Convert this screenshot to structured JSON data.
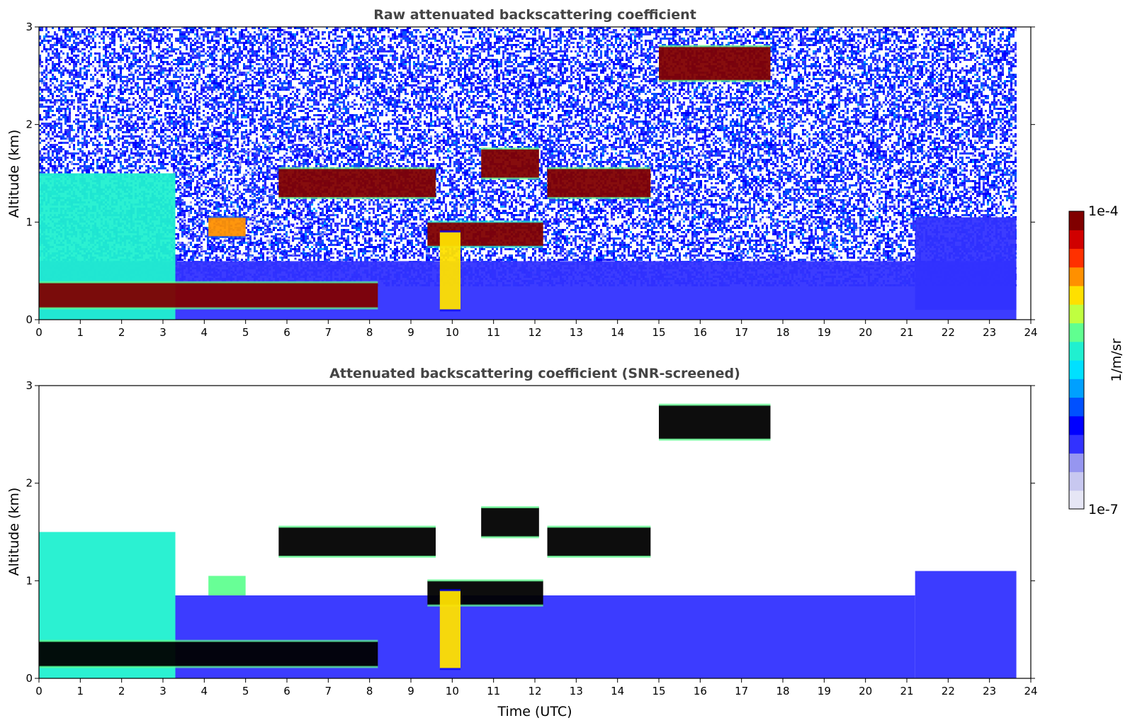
{
  "chart_data": [
    {
      "type": "heatmap",
      "title": "Raw attenuated backscattering coefficient",
      "xlabel": "",
      "ylabel": "Altitude (km)",
      "xlim": [
        0,
        24
      ],
      "ylim": [
        0,
        3
      ],
      "x_ticks": [
        0,
        1,
        2,
        3,
        4,
        5,
        6,
        7,
        8,
        9,
        10,
        11,
        12,
        13,
        14,
        15,
        16,
        17,
        18,
        19,
        20,
        21,
        22,
        23,
        24
      ],
      "y_ticks": [
        0,
        1,
        2,
        3
      ],
      "features": [
        {
          "kind": "noise",
          "t0": 0,
          "t1": 23.65,
          "z0": 0.35,
          "z1": 3.0,
          "level": 0.28,
          "density": 0.55
        },
        {
          "kind": "noise",
          "t0": 3.3,
          "t1": 7.0,
          "z0": 0.45,
          "z1": 1.9,
          "level": 0.22,
          "density": 0.1
        },
        {
          "kind": "layer",
          "t0": 0,
          "t1": 23.65,
          "z0": 0,
          "z1": 0.6,
          "level": 0.2
        },
        {
          "kind": "layer",
          "t0": 0,
          "t1": 3.3,
          "z0": 0,
          "z1": 1.5,
          "level": 0.5
        },
        {
          "kind": "layer",
          "t0": 0,
          "t1": 8.2,
          "z0": 0.12,
          "z1": 0.38,
          "level": 0.98
        },
        {
          "kind": "layer",
          "t0": 5.8,
          "t1": 9.6,
          "z0": 1.25,
          "z1": 1.55,
          "level": 0.98
        },
        {
          "kind": "layer",
          "t0": 10.7,
          "t1": 12.1,
          "z0": 1.45,
          "z1": 1.75,
          "level": 0.98
        },
        {
          "kind": "layer",
          "t0": 9.4,
          "t1": 12.2,
          "z0": 0.75,
          "z1": 1.0,
          "level": 0.95
        },
        {
          "kind": "layer",
          "t0": 12.3,
          "t1": 14.8,
          "z0": 1.25,
          "z1": 1.55,
          "level": 0.98
        },
        {
          "kind": "layer",
          "t0": 15.0,
          "t1": 17.7,
          "z0": 2.45,
          "z1": 2.8,
          "level": 0.98
        },
        {
          "kind": "layer",
          "t0": 4.1,
          "t1": 5.0,
          "z0": 0.85,
          "z1": 1.05,
          "level": 0.75
        },
        {
          "kind": "layer",
          "t0": 9.7,
          "t1": 10.2,
          "z0": 0.1,
          "z1": 0.9,
          "level": 0.7
        },
        {
          "kind": "layer",
          "t0": 21.2,
          "t1": 23.65,
          "z0": 0.1,
          "z1": 1.05,
          "level": 0.2
        }
      ]
    },
    {
      "type": "heatmap",
      "title": "Attenuated backscattering coefficient (SNR-screened)",
      "xlabel": "Time (UTC)",
      "ylabel": "Altitude (km)",
      "xlim": [
        0,
        24
      ],
      "ylim": [
        0,
        3
      ],
      "x_ticks": [
        0,
        1,
        2,
        3,
        4,
        5,
        6,
        7,
        8,
        9,
        10,
        11,
        12,
        13,
        14,
        15,
        16,
        17,
        18,
        19,
        20,
        21,
        22,
        23,
        24
      ],
      "y_ticks": [
        0,
        1,
        2,
        3
      ],
      "features": [
        {
          "kind": "layer",
          "t0": 3.3,
          "t1": 21.2,
          "z0": 0,
          "z1": 0.85,
          "level": 0.2
        },
        {
          "kind": "layer",
          "t0": 21.2,
          "t1": 23.65,
          "z0": 0,
          "z1": 1.1,
          "level": 0.2
        },
        {
          "kind": "layer",
          "t0": 0,
          "t1": 3.3,
          "z0": 0,
          "z1": 1.5,
          "level": 0.5
        },
        {
          "kind": "layer",
          "t0": 0,
          "t1": 8.2,
          "z0": 0.12,
          "z1": 0.38,
          "level": 1.0
        },
        {
          "kind": "layer",
          "t0": 5.8,
          "t1": 9.6,
          "z0": 1.25,
          "z1": 1.55,
          "level": 1.0
        },
        {
          "kind": "layer",
          "t0": 10.7,
          "t1": 12.1,
          "z0": 1.45,
          "z1": 1.75,
          "level": 1.0
        },
        {
          "kind": "layer",
          "t0": 9.4,
          "t1": 12.2,
          "z0": 0.75,
          "z1": 1.0,
          "level": 1.0
        },
        {
          "kind": "layer",
          "t0": 12.3,
          "t1": 14.8,
          "z0": 1.25,
          "z1": 1.55,
          "level": 1.0
        },
        {
          "kind": "layer",
          "t0": 15.0,
          "t1": 17.7,
          "z0": 2.45,
          "z1": 2.8,
          "level": 1.0
        },
        {
          "kind": "layer",
          "t0": 4.1,
          "t1": 5.0,
          "z0": 0.85,
          "z1": 1.05,
          "level": 0.6
        },
        {
          "kind": "layer",
          "t0": 9.7,
          "t1": 10.2,
          "z0": 0.1,
          "z1": 0.9,
          "level": 0.7
        }
      ]
    }
  ],
  "colorbar": {
    "label": "1/m/sr",
    "max_label": "1e-4",
    "min_label": "1e-7",
    "colors": [
      "#e6e6f5",
      "#c8c8f0",
      "#9696f0",
      "#3232ff",
      "#0000ff",
      "#0050ff",
      "#00a0ff",
      "#00e0ff",
      "#20f0d0",
      "#60ff90",
      "#c0ff40",
      "#ffe000",
      "#ff9000",
      "#ff3000",
      "#d00000",
      "#800000"
    ]
  },
  "colors": {
    "high_snr_fill": "#000000"
  }
}
